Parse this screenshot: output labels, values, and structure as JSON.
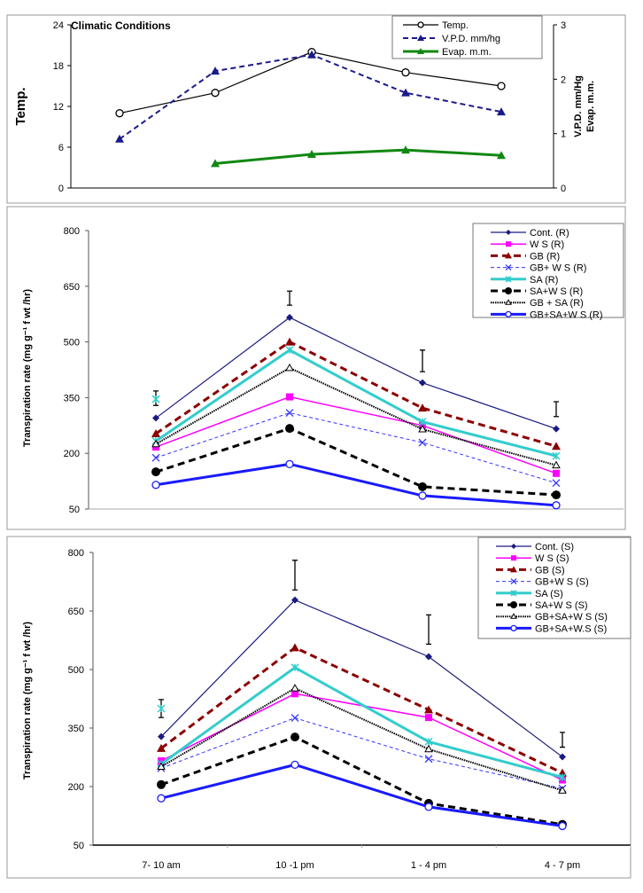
{
  "chart_data": [
    {
      "type": "line",
      "title": "Climatic Conditions",
      "ylabel": "Temp.",
      "y2label": [
        "V.P.D. mm/Hg",
        "Evap. m.m."
      ],
      "ylim": [
        0,
        24
      ],
      "yticks": [
        0,
        6,
        12,
        18,
        24
      ],
      "y2lim": [
        0,
        3
      ],
      "y2ticks": [
        0,
        1,
        2,
        3
      ],
      "x": [
        1,
        2,
        3,
        4,
        5
      ],
      "legend_position": "top-right",
      "series": [
        {
          "name": "Temp.",
          "axis": "left",
          "values": [
            11,
            14,
            20,
            17,
            15
          ],
          "color": "#000000",
          "marker": "circle-open",
          "dash": "solid"
        },
        {
          "name": "V.P.D. mm/hg",
          "axis": "right",
          "values": [
            0.9,
            2.15,
            2.45,
            1.75,
            1.4
          ],
          "color": "#1a1a8c",
          "marker": "triangle",
          "dash": "dashed"
        },
        {
          "name": "Evap.   m.m.",
          "axis": "right",
          "values": [
            null,
            0.45,
            0.62,
            0.7,
            0.6
          ],
          "color": "#118811",
          "marker": "triangle",
          "dash": "solid-thick"
        }
      ]
    },
    {
      "type": "line",
      "ylabel": "Transpiration rate (mg g⁻¹ f wt /hr)",
      "ylim": [
        50,
        800
      ],
      "yticks": [
        50,
        200,
        350,
        500,
        650,
        800
      ],
      "categories": [
        "7- 10 am",
        "10 -1 pm",
        "1 - 4 pm",
        "4 - 7 pm"
      ],
      "show_category_labels": false,
      "legend_position": "top-right",
      "error_bars": [
        [
          329,
          368
        ],
        [
          599,
          637
        ],
        [
          420,
          478
        ],
        [
          299,
          339
        ]
      ],
      "extra_point": {
        "series": "SA   (R)",
        "category": "7- 10 am",
        "value": 346
      },
      "series": [
        {
          "name": "Cont.  (R)",
          "values": [
            295,
            566,
            390,
            266
          ],
          "color": "#1a1a80",
          "marker": "diamond",
          "dash": "solid"
        },
        {
          "name": "W S (R)",
          "values": [
            217,
            352,
            275,
            146
          ],
          "color": "#ff00ff",
          "marker": "square",
          "dash": "solid-med"
        },
        {
          "name": "GB  (R)",
          "values": [
            253,
            500,
            322,
            219
          ],
          "color": "#8b0000",
          "marker": "triangle",
          "dash": "dashed-thick"
        },
        {
          "name": "GB+ W S (R)",
          "values": [
            188,
            309,
            229,
            120
          ],
          "color": "#3333ff",
          "marker": "x",
          "dash": "dashed-thin"
        },
        {
          "name": "SA   (R)",
          "values": [
            233,
            478,
            285,
            193
          ],
          "color": "#33cccc",
          "marker": "asterisk",
          "dash": "solid-thick"
        },
        {
          "name": "SA+W S (R)",
          "values": [
            150,
            267,
            110,
            88
          ],
          "color": "#000000",
          "marker": "circle",
          "dash": "dashed-thick"
        },
        {
          "name": "GB + SA (R)",
          "values": [
            225,
            430,
            265,
            168
          ],
          "color": "#000000",
          "marker": "triangle-open",
          "dash": "dotted"
        },
        {
          "name": "GB+SA+W S (R)",
          "values": [
            115,
            171,
            86,
            60
          ],
          "color": "#1a1aff",
          "marker": "circle-open",
          "dash": "solid-thick"
        }
      ]
    },
    {
      "type": "line",
      "ylabel": "Transpiration rate (mg g⁻¹ f wt /hr)",
      "ylim": [
        50,
        800
      ],
      "yticks": [
        50,
        200,
        350,
        500,
        650,
        800
      ],
      "categories": [
        "7- 10 am",
        "10 -1 pm",
        "1 - 4 pm",
        "4 - 7 pm"
      ],
      "show_category_labels": true,
      "legend_position": "top-right",
      "error_bars": [
        [
          377,
          423
        ],
        [
          704,
          780
        ],
        [
          565,
          640
        ],
        [
          301,
          339
        ]
      ],
      "extra_point": {
        "series": "SA    (S)",
        "category": "7- 10 am",
        "value": 400
      },
      "series": [
        {
          "name": "Cont.   (S)",
          "values": [
            328,
            678,
            533,
            276
          ],
          "color": "#1a1a80",
          "marker": "diamond",
          "dash": "solid"
        },
        {
          "name": "W S   (S)",
          "values": [
            266,
            438,
            377,
            217
          ],
          "color": "#ff00ff",
          "marker": "square",
          "dash": "solid-med"
        },
        {
          "name": "GB   (S)",
          "values": [
            298,
            556,
            397,
            235
          ],
          "color": "#8b0000",
          "marker": "triangle",
          "dash": "dashed-thick"
        },
        {
          "name": "GB+W S  (S)",
          "values": [
            247,
            376,
            271,
            195
          ],
          "color": "#3333ff",
          "marker": "x",
          "dash": "dashed-thin"
        },
        {
          "name": "SA    (S)",
          "values": [
            258,
            505,
            315,
            224
          ],
          "color": "#33cccc",
          "marker": "asterisk",
          "dash": "solid-thick"
        },
        {
          "name": "SA+W S (S)",
          "values": [
            205,
            327,
            157,
            103
          ],
          "color": "#000000",
          "marker": "circle",
          "dash": "dashed-thick"
        },
        {
          "name": "GB+SA+W S (S)",
          "values": [
            251,
            452,
            296,
            190
          ],
          "color": "#000000",
          "marker": "triangle-open",
          "dash": "dotted"
        },
        {
          "name": "GB+SA+W.S (S)",
          "values": [
            170,
            256,
            148,
            99
          ],
          "color": "#1a1aff",
          "marker": "circle-open",
          "dash": "solid-thick"
        }
      ]
    }
  ]
}
